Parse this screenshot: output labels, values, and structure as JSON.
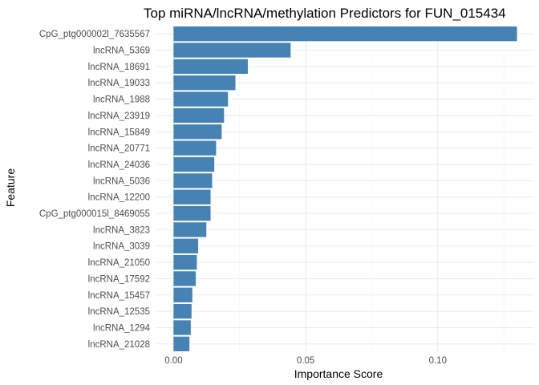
{
  "chart_data": {
    "type": "bar",
    "orientation": "horizontal",
    "title": "Top miRNA/lncRNA/methylation Predictors for FUN_015434",
    "xlabel": "Importance Score",
    "ylabel": "Feature",
    "xlim": [
      -0.0065,
      0.1365
    ],
    "xticks": [
      0.0,
      0.05,
      0.1
    ],
    "xtick_labels": [
      "0.00",
      "0.05",
      "0.10"
    ],
    "x_minor_gridlines": [
      0.025,
      0.075,
      0.125
    ],
    "grid": true,
    "bar_color": "#4682b4",
    "categories": [
      "CpG_ptg000002l_7635567",
      "lncRNA_5369",
      "lncRNA_18691",
      "lncRNA_19033",
      "lncRNA_1988",
      "lncRNA_23919",
      "lncRNA_15849",
      "lncRNA_20771",
      "lncRNA_24036",
      "lncRNA_5036",
      "lncRNA_12200",
      "CpG_ptg000015l_8469055",
      "lncRNA_3823",
      "lncRNA_3039",
      "lncRNA_21050",
      "lncRNA_17592",
      "lncRNA_15457",
      "lncRNA_12535",
      "lncRNA_1294",
      "lncRNA_21028"
    ],
    "values": [
      0.13,
      0.0443,
      0.0281,
      0.0234,
      0.0206,
      0.0191,
      0.0182,
      0.0161,
      0.0154,
      0.0146,
      0.014,
      0.014,
      0.0124,
      0.0093,
      0.0088,
      0.0084,
      0.0071,
      0.0068,
      0.0065,
      0.006
    ]
  }
}
